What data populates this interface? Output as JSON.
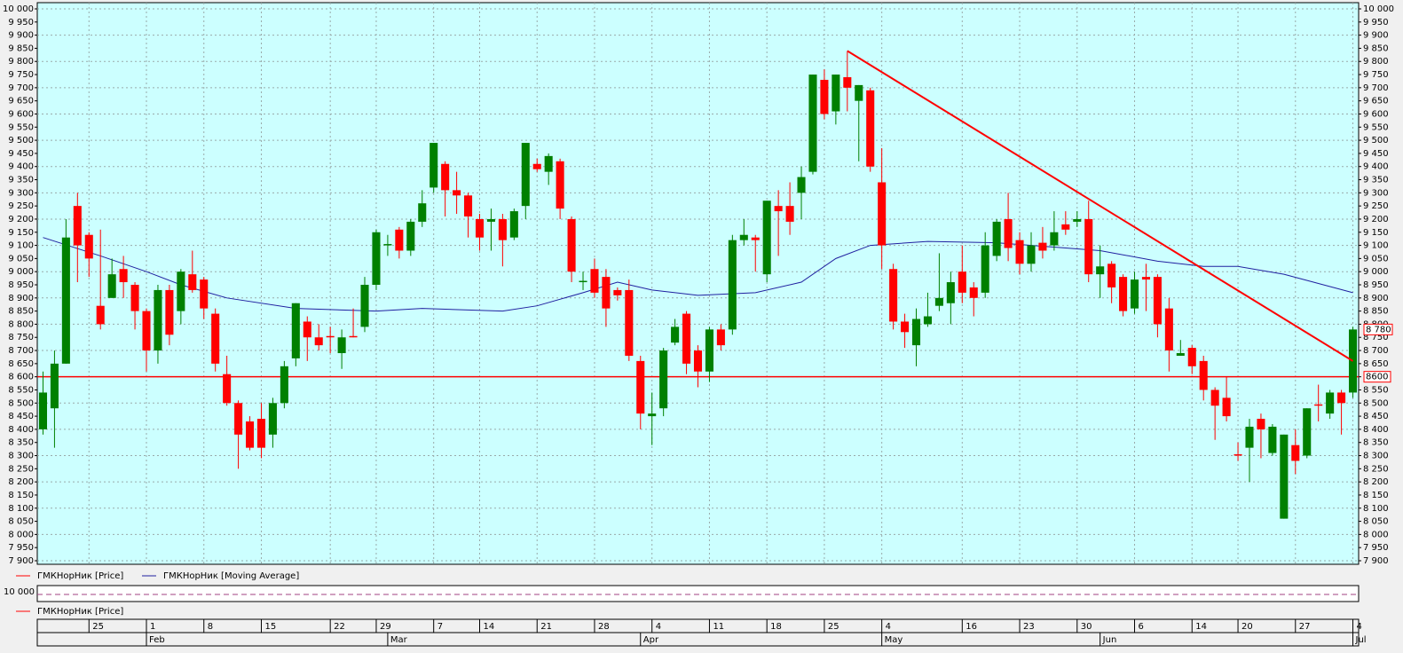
{
  "chart_data": {
    "type": "candlestick",
    "xlim": [
      -0.5,
      114.5
    ],
    "ylim": [
      7900,
      10000
    ],
    "yticks": [
      {
        "value": 7900,
        "label": "7 900"
      },
      {
        "value": 7950,
        "label": "7 950"
      },
      {
        "value": 8000,
        "label": "8 000"
      },
      {
        "value": 8050,
        "label": "8 050"
      },
      {
        "value": 8100,
        "label": "8 100"
      },
      {
        "value": 8150,
        "label": "8 150"
      },
      {
        "value": 8200,
        "label": "8 200"
      },
      {
        "value": 8250,
        "label": "8 250"
      },
      {
        "value": 8300,
        "label": "8 300"
      },
      {
        "value": 8350,
        "label": "8 350"
      },
      {
        "value": 8400,
        "label": "8 400"
      },
      {
        "value": 8450,
        "label": "8 450"
      },
      {
        "value": 8500,
        "label": "8 500"
      },
      {
        "value": 8550,
        "label": "8 550"
      },
      {
        "value": 8600,
        "label": "8 600"
      },
      {
        "value": 8650,
        "label": "8 650"
      },
      {
        "value": 8700,
        "label": "8 700"
      },
      {
        "value": 8750,
        "label": "8 750"
      },
      {
        "value": 8800,
        "label": "8 800"
      },
      {
        "value": 8850,
        "label": "8 850"
      },
      {
        "value": 8900,
        "label": "8 900"
      },
      {
        "value": 8950,
        "label": "8 950"
      },
      {
        "value": 9000,
        "label": "9 000"
      },
      {
        "value": 9050,
        "label": "9 050"
      },
      {
        "value": 9100,
        "label": "9 100"
      },
      {
        "value": 9150,
        "label": "9 150"
      },
      {
        "value": 9200,
        "label": "9 200"
      },
      {
        "value": 9250,
        "label": "9 250"
      },
      {
        "value": 9300,
        "label": "9 300"
      },
      {
        "value": 9350,
        "label": "9 350"
      },
      {
        "value": 9400,
        "label": "9 400"
      },
      {
        "value": 9450,
        "label": "9 450"
      },
      {
        "value": 9500,
        "label": "9 500"
      },
      {
        "value": 9550,
        "label": "9 550"
      },
      {
        "value": 9600,
        "label": "9 600"
      },
      {
        "value": 9650,
        "label": "9 650"
      },
      {
        "value": 9700,
        "label": "9 700"
      },
      {
        "value": 9750,
        "label": "9 750"
      },
      {
        "value": 9800,
        "label": "9 800"
      },
      {
        "value": 9850,
        "label": "9 850"
      },
      {
        "value": 9900,
        "label": "9 900"
      },
      {
        "value": 9950,
        "label": "9 950"
      },
      {
        "value": 10000,
        "label": "10 000"
      }
    ],
    "day_ticks": [
      {
        "value": 4,
        "label": "25"
      },
      {
        "value": 9,
        "label": "1"
      },
      {
        "value": 14,
        "label": "8"
      },
      {
        "value": 19,
        "label": "15"
      },
      {
        "value": 25,
        "label": "22"
      },
      {
        "value": 29,
        "label": "29"
      },
      {
        "value": 34,
        "label": "7"
      },
      {
        "value": 38,
        "label": "14"
      },
      {
        "value": 43,
        "label": "21"
      },
      {
        "value": 48,
        "label": "28"
      },
      {
        "value": 53,
        "label": "4"
      },
      {
        "value": 58,
        "label": "11"
      },
      {
        "value": 63,
        "label": "18"
      },
      {
        "value": 68,
        "label": "25"
      },
      {
        "value": 73,
        "label": "4"
      },
      {
        "value": 80,
        "label": "16"
      },
      {
        "value": 85,
        "label": "23"
      },
      {
        "value": 90,
        "label": "30"
      },
      {
        "value": 95,
        "label": "6"
      },
      {
        "value": 100,
        "label": "14"
      },
      {
        "value": 104,
        "label": "20"
      },
      {
        "value": 109,
        "label": "27"
      },
      {
        "value": 114,
        "label": "4"
      }
    ],
    "month_ticks": [
      {
        "value": 9,
        "label": "Feb"
      },
      {
        "value": 30,
        "label": "Mar"
      },
      {
        "value": 52,
        "label": "Apr"
      },
      {
        "value": 73,
        "label": "May"
      },
      {
        "value": 92,
        "label": "Jun"
      },
      {
        "value": 114,
        "label": "Jul"
      }
    ],
    "grid": true,
    "price": {
      "name": "ГМКНорНик [Price]",
      "color": "#ff0000",
      "up_color": "#008000",
      "down_color": "#ff0000",
      "open": [
        8400,
        8480,
        8650,
        9250,
        9140,
        8870,
        8900,
        9010,
        8950,
        8850,
        8700,
        8930,
        8850,
        8990,
        8970,
        8840,
        8610,
        8500,
        8430,
        8440,
        8380,
        8500,
        8670,
        8810,
        8750,
        8755,
        8690,
        8755,
        8790,
        8950,
        9100,
        9160,
        9080,
        9190,
        9320,
        9410,
        9310,
        9290,
        9200,
        9190,
        9200,
        9130,
        9250,
        9410,
        9380,
        9420,
        9200,
        8960,
        9010,
        8980,
        8930,
        8930,
        8660,
        8450,
        8480,
        8730,
        8840,
        8700,
        8620,
        8780,
        8780,
        9120,
        9130,
        8990,
        9250,
        9250,
        9300,
        9380,
        9730,
        9610,
        9740,
        9650,
        9690,
        9340,
        9010,
        8810,
        8720,
        8800,
        8870,
        8880,
        9000,
        8940,
        8920,
        9060,
        9200,
        9120,
        9030,
        9110,
        9100,
        9180,
        9190,
        9200,
        8990,
        9030,
        8980,
        8860,
        8980,
        8980,
        8860,
        8680,
        8710,
        8660,
        8550,
        8520,
        8305,
        8330,
        8440,
        8310,
        8060,
        8340,
        8300,
        8495,
        8460,
        8540,
        8540
      ],
      "high": [
        8620,
        8700,
        9200,
        9300,
        9150,
        9160,
        9050,
        9060,
        8960,
        8860,
        8950,
        8950,
        9010,
        9080,
        8980,
        8860,
        8680,
        8510,
        8450,
        8500,
        8520,
        8660,
        8880,
        8830,
        8800,
        8790,
        8780,
        8860,
        8980,
        9160,
        9140,
        9170,
        9200,
        9310,
        9490,
        9420,
        9380,
        9300,
        9220,
        9240,
        9220,
        9240,
        9490,
        9430,
        9450,
        9430,
        9210,
        9000,
        9050,
        9010,
        8940,
        8970,
        8680,
        8540,
        8710,
        8820,
        8850,
        8720,
        8790,
        8800,
        9140,
        9200,
        9140,
        9270,
        9310,
        9340,
        9400,
        9750,
        9770,
        9750,
        9840,
        9710,
        9700,
        9470,
        9030,
        8840,
        8860,
        8920,
        9070,
        9000,
        9100,
        8960,
        9150,
        9200,
        9300,
        9150,
        9150,
        9170,
        9230,
        9230,
        9230,
        9270,
        9100,
        9040,
        8990,
        9000,
        9030,
        8990,
        8900,
        8740,
        8720,
        8680,
        8560,
        8600,
        8350,
        8440,
        8460,
        8420,
        8380,
        8400,
        8480,
        8570,
        8550,
        8550,
        8790
      ],
      "low": [
        8380,
        8330,
        8650,
        8960,
        8980,
        8780,
        8900,
        8900,
        8780,
        8620,
        8650,
        8720,
        8800,
        8920,
        8820,
        8620,
        8490,
        8250,
        8320,
        8290,
        8330,
        8480,
        8640,
        8660,
        8700,
        8690,
        8630,
        8750,
        8770,
        8930,
        9060,
        9050,
        9060,
        9170,
        9300,
        9210,
        9220,
        9130,
        9080,
        9080,
        9020,
        9120,
        9200,
        9380,
        9330,
        9200,
        8960,
        8930,
        8900,
        8790,
        8890,
        8660,
        8400,
        8340,
        8450,
        8720,
        8610,
        8560,
        8580,
        8700,
        8760,
        9100,
        9000,
        8960,
        9060,
        9140,
        9200,
        9370,
        9580,
        9560,
        9610,
        9420,
        9380,
        9010,
        8780,
        8710,
        8640,
        8790,
        8850,
        8800,
        8880,
        8830,
        8900,
        9040,
        9040,
        8990,
        9000,
        9050,
        9080,
        9140,
        9170,
        8960,
        8900,
        8880,
        8830,
        8840,
        8850,
        8750,
        8620,
        8680,
        8610,
        8510,
        8360,
        8430,
        8280,
        8200,
        8290,
        8300,
        8060,
        8230,
        8290,
        8430,
        8440,
        8380,
        8520
      ],
      "close": [
        8540,
        8650,
        9130,
        9100,
        9050,
        8800,
        8990,
        8960,
        8850,
        8700,
        8930,
        8760,
        9000,
        8930,
        8860,
        8650,
        8500,
        8380,
        8330,
        8330,
        8500,
        8640,
        8880,
        8750,
        8720,
        8750,
        8750,
        8750,
        8950,
        9150,
        9105,
        9080,
        9190,
        9260,
        9490,
        9310,
        9290,
        9210,
        9130,
        9200,
        9120,
        9230,
        9490,
        9390,
        9440,
        9240,
        9000,
        8965,
        8920,
        8860,
        8910,
        8680,
        8460,
        8460,
        8700,
        8790,
        8650,
        8620,
        8780,
        8720,
        9120,
        9140,
        9120,
        9270,
        9230,
        9190,
        9360,
        9750,
        9600,
        9750,
        9700,
        9710,
        9400,
        9100,
        8810,
        8770,
        8820,
        8830,
        8900,
        8960,
        8920,
        8900,
        9100,
        9190,
        9090,
        9030,
        9100,
        9080,
        9150,
        9160,
        9200,
        8990,
        9020,
        8940,
        8850,
        8970,
        8970,
        8800,
        8700,
        8690,
        8640,
        8550,
        8490,
        8450,
        8300,
        8410,
        8400,
        8410,
        8380,
        8280,
        8480,
        8490,
        8540,
        8500,
        8780
      ]
    },
    "moving_average": {
      "name": "ГМКНорНик [Moving Average]",
      "color": "#2020a0",
      "x": [
        0,
        5,
        9,
        12,
        16,
        22,
        29,
        33,
        40,
        43,
        47,
        50,
        53,
        57,
        62,
        66,
        69,
        72,
        77,
        83,
        89,
        92,
        97,
        101,
        104,
        108,
        114
      ],
      "values": [
        9130,
        9060,
        9000,
        8950,
        8900,
        8860,
        8850,
        8860,
        8850,
        8870,
        8920,
        8960,
        8930,
        8910,
        8920,
        8960,
        9050,
        9100,
        9115,
        9110,
        9090,
        9080,
        9040,
        9020,
        9020,
        8990,
        8920
      ]
    },
    "trend_line": {
      "color": "#ff0000",
      "x": [
        70,
        114
      ],
      "values": [
        9840,
        8660
      ]
    },
    "level_line": {
      "value": 8600,
      "label": "8600",
      "color": "#ff0000"
    },
    "last_price": {
      "value": 8780,
      "label": "8 780"
    },
    "lower_panel": {
      "axis_label": "10 000",
      "legend": "ГМКНорНик [Price]"
    }
  }
}
